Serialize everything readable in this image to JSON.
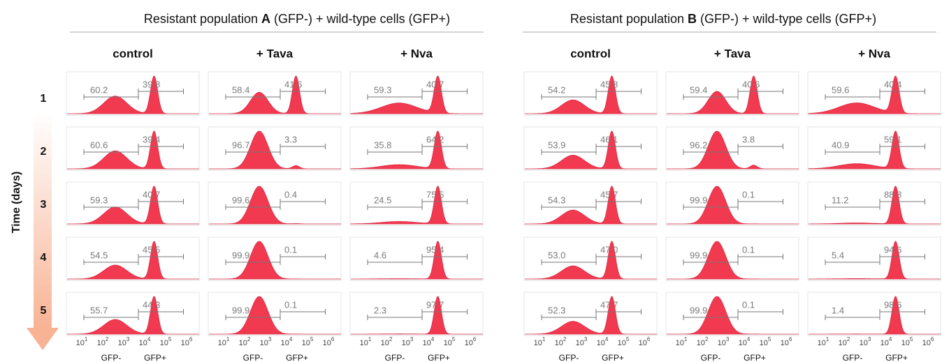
{
  "y_label": "Time (days)",
  "days": [
    "1",
    "2",
    "3",
    "4",
    "5"
  ],
  "axis": {
    "base": "10",
    "exponents": [
      "1",
      "2",
      "3",
      "4",
      "5",
      "6"
    ]
  },
  "gate_labels": [
    "GFP-",
    "GFP+"
  ],
  "groups": [
    {
      "title_prefix": "Resistant population ",
      "title_letter": "A",
      "title_suffix": " (GFP-) + wild-type cells (GFP+)",
      "conditions": [
        "control",
        "+ Tava",
        "+ Nva"
      ],
      "panels": [
        [
          [
            "60.2",
            "39.8"
          ],
          [
            "58.4",
            "41.6"
          ],
          [
            "59.3",
            "40.7"
          ]
        ],
        [
          [
            "60.6",
            "39.4"
          ],
          [
            "96.7",
            "3.3"
          ],
          [
            "35.8",
            "64.2"
          ]
        ],
        [
          [
            "59.3",
            "40.7"
          ],
          [
            "99.6",
            "0.4"
          ],
          [
            "24.5",
            "75.5"
          ]
        ],
        [
          [
            "54.5",
            "45.5"
          ],
          [
            "99.9",
            "0.1"
          ],
          [
            "4.6",
            "95.4"
          ]
        ],
        [
          [
            "55.7",
            "44.3"
          ],
          [
            "99.9",
            "0.1"
          ],
          [
            "2.3",
            "97.7"
          ]
        ]
      ]
    },
    {
      "title_prefix": "Resistant population ",
      "title_letter": "B",
      "title_suffix": " (GFP-) + wild-type cells (GFP+)",
      "conditions": [
        "control",
        "+ Tava",
        "+ Nva"
      ],
      "panels": [
        [
          [
            "54.2",
            "45.8"
          ],
          [
            "59.4",
            "40.6"
          ],
          [
            "59.6",
            "40.4"
          ]
        ],
        [
          [
            "53.9",
            "46.1"
          ],
          [
            "96.2",
            "3.8"
          ],
          [
            "40.9",
            "59.1"
          ]
        ],
        [
          [
            "54.3",
            "45.7"
          ],
          [
            "99.9",
            "0.1"
          ],
          [
            "11.2",
            "88.8"
          ]
        ],
        [
          [
            "53.0",
            "47.0"
          ],
          [
            "99.9",
            "0.1"
          ],
          [
            "5.4",
            "94.6"
          ]
        ],
        [
          [
            "52.3",
            "47.7"
          ],
          [
            "99.9",
            "0.1"
          ],
          [
            "1.4",
            "98.6"
          ]
        ]
      ]
    }
  ]
}
